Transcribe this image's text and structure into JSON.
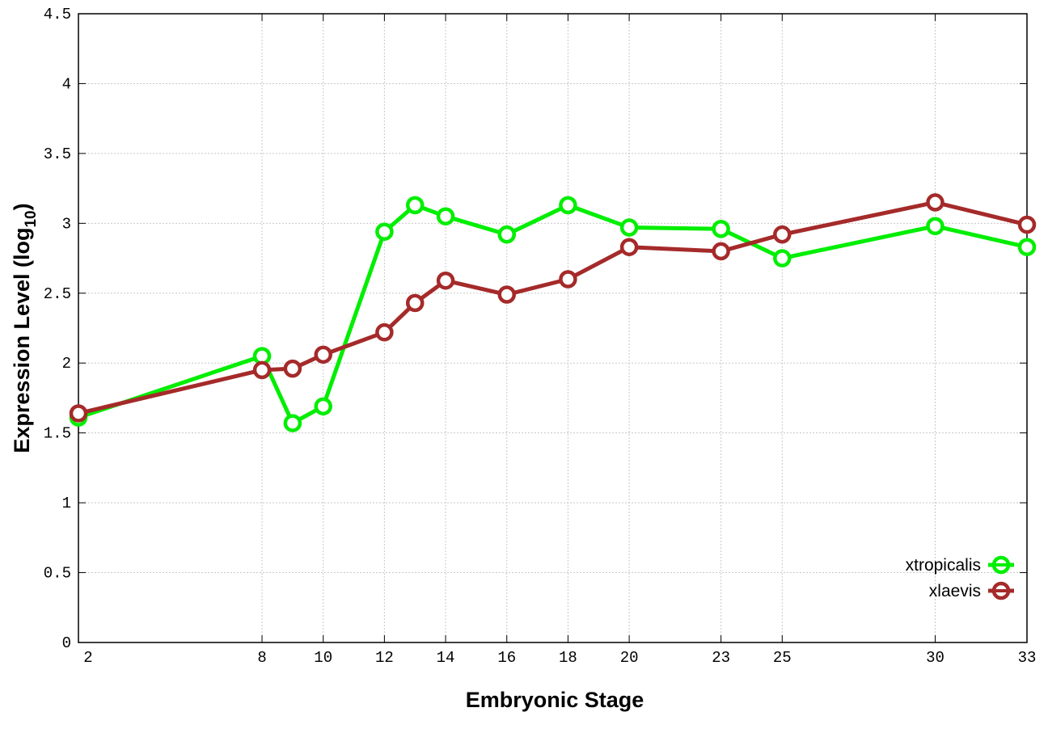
{
  "chart_data": {
    "type": "line",
    "title": "",
    "xlabel": "Embryonic Stage",
    "ylabel": "Expression Level (log",
    "ylabel_subscript": "10",
    "ylabel_suffix": ")",
    "xlim": [
      2,
      33
    ],
    "ylim": [
      0,
      4.5
    ],
    "x_ticks": [
      2,
      8,
      10,
      12,
      14,
      16,
      18,
      20,
      23,
      25,
      30,
      33
    ],
    "y_ticks": [
      0,
      0.5,
      1,
      1.5,
      2,
      2.5,
      3,
      3.5,
      4,
      4.5
    ],
    "y_tick_labels": [
      "0",
      "0.5",
      "1",
      "1.5",
      "2",
      "2.5",
      "3",
      "3.5",
      "4",
      "4.5"
    ],
    "grid": true,
    "legend_position": "bottom-right",
    "x": [
      2,
      8,
      9,
      10,
      12,
      13,
      14,
      16,
      18,
      20,
      23,
      25,
      30,
      33
    ],
    "series": [
      {
        "name": "xtropicalis",
        "color": "#00ee00",
        "values": [
          1.61,
          2.05,
          1.57,
          1.69,
          2.94,
          3.13,
          3.05,
          2.92,
          3.13,
          2.97,
          2.96,
          2.75,
          2.98,
          2.83
        ]
      },
      {
        "name": "xlaevis",
        "color": "#a52a2a",
        "values": [
          1.64,
          1.95,
          1.96,
          2.06,
          2.22,
          2.43,
          2.59,
          2.49,
          2.6,
          2.83,
          2.8,
          2.92,
          3.15,
          2.99
        ]
      }
    ]
  }
}
